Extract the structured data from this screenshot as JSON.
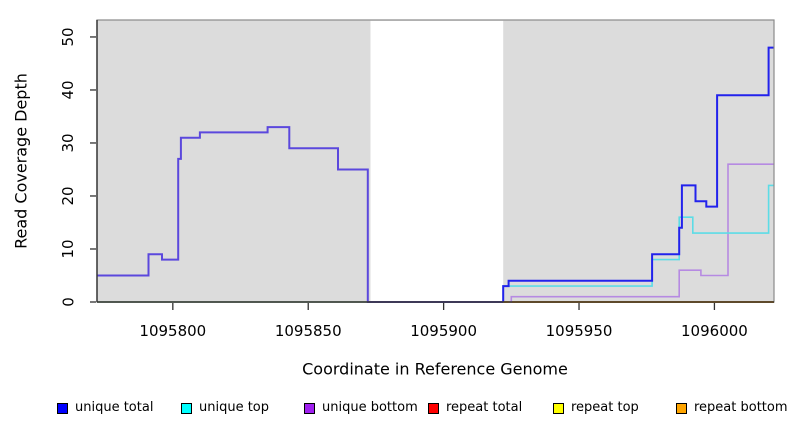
{
  "chart_data": {
    "type": "line",
    "subtype": "step-after",
    "title": "",
    "xlabel": "Coordinate in Reference Genome",
    "ylabel": "Read Coverage Depth",
    "xlim": [
      1095772,
      1096022
    ],
    "ylim": [
      0,
      53.2
    ],
    "x_ticks": [
      1095800,
      1095850,
      1095900,
      1095950,
      1096000
    ],
    "y_ticks": [
      0,
      10,
      20,
      30,
      40,
      50
    ],
    "grid": false,
    "plot_background": "#dcdcdc",
    "gap_region": {
      "start": 1095873,
      "end": 1095922,
      "color": "#ffffff"
    },
    "series": [
      {
        "name": "zero-line-left-green",
        "color": "#90cd90",
        "width": 1.6,
        "points": [
          [
            1095772,
            0
          ],
          [
            1095873,
            0
          ]
        ]
      },
      {
        "name": "zero-line-right-orange",
        "color": "#ff9d00",
        "width": 2,
        "points": [
          [
            1095922,
            0
          ],
          [
            1096022,
            0
          ]
        ]
      },
      {
        "name": "unique-bottom",
        "color": "#b68ae2",
        "width": 1.6,
        "points": [
          [
            1095924,
            0
          ],
          [
            1095925,
            1
          ],
          [
            1095987,
            6
          ],
          [
            1095995,
            5
          ],
          [
            1096005,
            26
          ],
          [
            1096022,
            26
          ]
        ]
      },
      {
        "name": "unique-top",
        "color": "#5cdce6",
        "width": 1.6,
        "points": [
          [
            1095922,
            0
          ],
          [
            1095922,
            3
          ],
          [
            1095977,
            8
          ],
          [
            1095987,
            16
          ],
          [
            1095992,
            13
          ],
          [
            1096020,
            22
          ],
          [
            1096022,
            22
          ]
        ]
      },
      {
        "name": "unique-total-left",
        "color": "#5b48dd",
        "width": 2,
        "points": [
          [
            1095772,
            5
          ],
          [
            1095791,
            9
          ],
          [
            1095796,
            8
          ],
          [
            1095802,
            27
          ],
          [
            1095803,
            31
          ],
          [
            1095810,
            32
          ],
          [
            1095835,
            33
          ],
          [
            1095843,
            29
          ],
          [
            1095861,
            25
          ],
          [
            1095872,
            0
          ],
          [
            1095922,
            0
          ]
        ]
      },
      {
        "name": "unique-total-right",
        "color": "#2222ec",
        "width": 2,
        "points": [
          [
            1095922,
            0
          ],
          [
            1095922,
            3
          ],
          [
            1095924,
            4
          ],
          [
            1095977,
            9
          ],
          [
            1095987,
            14
          ],
          [
            1095988,
            22
          ],
          [
            1095993,
            19
          ],
          [
            1095997,
            18
          ],
          [
            1096001,
            39
          ],
          [
            1096020,
            48
          ],
          [
            1096022,
            48
          ]
        ]
      }
    ],
    "legend": {
      "position": "bottom",
      "items": [
        {
          "label": "unique total",
          "color": "#0000ff"
        },
        {
          "label": "unique top",
          "color": "#00ffff"
        },
        {
          "label": "unique bottom",
          "color": "#a020f0"
        },
        {
          "label": "repeat total",
          "color": "#ff0000"
        },
        {
          "label": "repeat top",
          "color": "#ffff00"
        },
        {
          "label": "repeat bottom",
          "color": "#ffa500"
        }
      ]
    },
    "colors": {
      "axis": "#303030",
      "box_border": "#8a8a8a",
      "tick_label": "#000000"
    }
  }
}
